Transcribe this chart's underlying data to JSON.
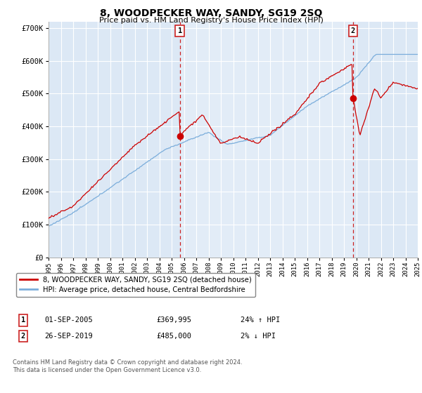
{
  "title": "8, WOODPECKER WAY, SANDY, SG19 2SQ",
  "subtitle": "Price paid vs. HM Land Registry's House Price Index (HPI)",
  "plot_bg_color": "#dce8f5",
  "ylim": [
    0,
    720000
  ],
  "yticks": [
    0,
    100000,
    200000,
    300000,
    400000,
    500000,
    600000,
    700000
  ],
  "ytick_labels": [
    "£0",
    "£100K",
    "£200K",
    "£300K",
    "£400K",
    "£500K",
    "£600K",
    "£700K"
  ],
  "xstart_year": 1995,
  "xend_year": 2025,
  "sale1_date": 2005.67,
  "sale1_price": 369995,
  "sale1_label": "1",
  "sale2_date": 2019.73,
  "sale2_price": 485000,
  "sale2_label": "2",
  "red_line_color": "#cc0000",
  "blue_line_color": "#7aaddb",
  "legend_label_red": "8, WOODPECKER WAY, SANDY, SG19 2SQ (detached house)",
  "legend_label_blue": "HPI: Average price, detached house, Central Bedfordshire",
  "footer": "Contains HM Land Registry data © Crown copyright and database right 2024.\nThis data is licensed under the Open Government Licence v3.0.",
  "grid_color": "#ffffff",
  "marker_box_color": "#cc2222",
  "highlight_bg": "#e8f0fa"
}
